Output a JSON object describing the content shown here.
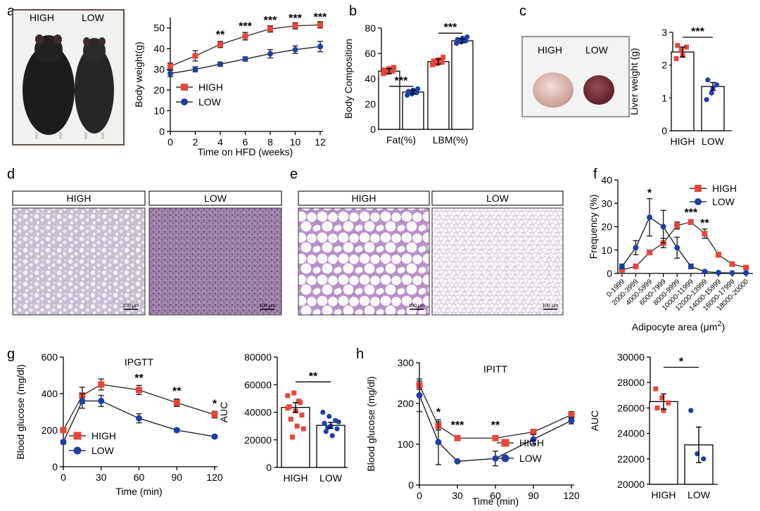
{
  "colors": {
    "high": "#e8463c",
    "low": "#1f3fa8",
    "axis": "#000000"
  },
  "panels": {
    "a": {
      "letter": "a"
    },
    "b": {
      "letter": "b"
    },
    "c": {
      "letter": "c"
    },
    "d": {
      "letter": "d"
    },
    "e": {
      "letter": "e"
    },
    "f": {
      "letter": "f"
    },
    "g": {
      "letter": "g"
    },
    "h": {
      "letter": "h"
    }
  },
  "photos": {
    "mice": {
      "high": "HIGH",
      "low": "LOW"
    },
    "liver": {
      "high": "HIGH",
      "low": "LOW"
    },
    "liver_histo": {
      "high": "HIGH",
      "low": "LOW",
      "scale_high": "100 μm",
      "scale_low": "100 μm"
    },
    "adipose_histo": {
      "high": "HIGH",
      "low": "LOW",
      "scale_high": "100 μm",
      "scale_low": "100 μm"
    }
  },
  "chart_data": [
    {
      "id": "a",
      "type": "line",
      "xlabel": "Time on HFD (weeks)",
      "ylabel": "Body weight(g)",
      "x": [
        0,
        2,
        4,
        6,
        8,
        10,
        12
      ],
      "xticks": [
        0,
        2,
        4,
        6,
        8,
        10,
        12
      ],
      "ylim": [
        0,
        55
      ],
      "yticks": [
        0,
        10,
        20,
        30,
        40,
        50
      ],
      "series": [
        {
          "name": "HIGH",
          "marker": "square",
          "values": [
            31.5,
            36.5,
            42,
            46,
            49.5,
            51,
            51.5
          ],
          "err": [
            1.5,
            2.5,
            1.5,
            1.8,
            1.5,
            1.5,
            1.5
          ]
        },
        {
          "name": "LOW",
          "marker": "circle",
          "values": [
            28,
            30,
            32.5,
            35,
            37.5,
            39.5,
            41
          ],
          "err": [
            1.5,
            1.2,
            1.0,
            1.0,
            2.0,
            1.8,
            2.5
          ]
        }
      ],
      "annotations": [
        {
          "x": 4,
          "y": 45,
          "text": "**"
        },
        {
          "x": 6,
          "y": 49,
          "text": "***"
        },
        {
          "x": 8,
          "y": 52,
          "text": "***"
        },
        {
          "x": 10,
          "y": 53,
          "text": "***"
        },
        {
          "x": 12,
          "y": 53.5,
          "text": "***"
        }
      ],
      "legend": "center-right"
    },
    {
      "id": "b",
      "type": "bar",
      "ylabel": "Body Composition",
      "categories": [
        "Fat(%)",
        "LBM(%)"
      ],
      "ylim": [
        0,
        80
      ],
      "yticks": [
        0,
        20,
        40,
        60,
        80
      ],
      "series": [
        {
          "name": "HIGH",
          "values": [
            46,
            53.5
          ],
          "err": [
            2.0,
            2.0
          ],
          "points": [
            [
              44,
              45,
              46,
              47,
              48,
              49
            ],
            [
              51,
              52,
              53,
              54,
              55,
              57
            ]
          ]
        },
        {
          "name": "LOW",
          "values": [
            29.5,
            70
          ],
          "err": [
            1.5,
            1.5
          ],
          "points": [
            [
              27,
              28,
              29,
              30,
              31,
              32
            ],
            [
              68,
              69,
              70,
              71,
              72,
              73
            ]
          ]
        }
      ],
      "annotations": [
        {
          "group": 0,
          "text": "***",
          "y": 34
        },
        {
          "group": 1,
          "text": "***",
          "y": 76
        }
      ]
    },
    {
      "id": "c",
      "type": "bar",
      "ylabel": "Liver weight (g)",
      "categories": [
        "HIGH",
        "LOW"
      ],
      "ylim": [
        0,
        3
      ],
      "yticks": [
        0,
        1,
        2,
        3
      ],
      "values": [
        2.4,
        1.35
      ],
      "err": [
        0.15,
        0.12
      ],
      "points": [
        [
          2.2,
          2.45,
          2.55,
          2.6,
          2.3
        ],
        [
          0.95,
          1.15,
          1.4,
          1.55,
          1.3
        ]
      ],
      "annotations": [
        {
          "text": "***",
          "y": 2.85
        }
      ]
    },
    {
      "id": "f",
      "type": "line",
      "xlabel": "Adipocyte area (μm",
      "xlabel_sup": "2",
      "xlabel_end": ")",
      "ylabel": "Frequency (%)",
      "categories": [
        "0-1999",
        "2000-3999",
        "4000-5999",
        "6000-7999",
        "8000-9999",
        "10000-11999",
        "12000-13999",
        "14000-15999",
        "16000-17999",
        "18000-20000"
      ],
      "ylim": [
        0,
        40
      ],
      "yticks": [
        0,
        10,
        20,
        30,
        40
      ],
      "series": [
        {
          "name": "HIGH",
          "marker": "square",
          "values": [
            1.5,
            3,
            9,
            13,
            20.5,
            22,
            17,
            8,
            4,
            2.5
          ],
          "err": [
            0.5,
            0.5,
            1.0,
            2.0,
            1.5,
            1.0,
            2.0,
            1.0,
            0.5,
            0.5
          ]
        },
        {
          "name": "LOW",
          "marker": "circle",
          "values": [
            3,
            11,
            24,
            20,
            11,
            3,
            0.8,
            0.3,
            0.2,
            0.2
          ],
          "err": [
            1.0,
            3.0,
            8.0,
            7.0,
            4.5,
            1.0,
            0.5,
            0.2,
            0.1,
            0.1
          ]
        }
      ],
      "annotations": [
        {
          "x": 2,
          "y": 33,
          "text": "*"
        },
        {
          "x": 5,
          "y": 24.5,
          "text": "***"
        },
        {
          "x": 6,
          "y": 20,
          "text": "**"
        }
      ],
      "legend": "top-right"
    },
    {
      "id": "g1",
      "type": "line",
      "title": "IPGTT",
      "xlabel": "Time (min)",
      "ylabel": "Blood glucose (mg/dl)",
      "x": [
        0,
        15,
        30,
        60,
        90,
        120
      ],
      "xticks": [
        0,
        30,
        60,
        90,
        120
      ],
      "ylim": [
        0,
        600
      ],
      "yticks": [
        0,
        200,
        400,
        600
      ],
      "series": [
        {
          "name": "HIGH",
          "marker": "square",
          "values": [
            200,
            390,
            450,
            420,
            350,
            285
          ],
          "err": [
            10,
            45,
            30,
            25,
            20,
            18
          ]
        },
        {
          "name": "LOW",
          "marker": "circle",
          "values": [
            135,
            360,
            360,
            265,
            200,
            165
          ],
          "err": [
            10,
            40,
            30,
            25,
            10,
            8
          ]
        }
      ],
      "annotations": [
        {
          "x": 60,
          "y": 465,
          "text": "**"
        },
        {
          "x": 90,
          "y": 395,
          "text": "**"
        },
        {
          "x": 120,
          "y": 325,
          "text": "*"
        }
      ],
      "legend": "bottom-left"
    },
    {
      "id": "g2",
      "type": "bar",
      "ylabel": "AUC",
      "categories": [
        "HIGH",
        "LOW"
      ],
      "ylim": [
        0,
        80000
      ],
      "yticks": [
        0,
        20000,
        40000,
        60000,
        80000
      ],
      "values": [
        43500,
        30500
      ],
      "err": [
        3500,
        2200
      ],
      "points": [
        [
          52000,
          54000,
          47000,
          44000,
          41000,
          38000,
          35000,
          30000,
          28000,
          22000,
          48000,
          43000
        ],
        [
          40000,
          37000,
          34000,
          32000,
          30000,
          28000,
          26000,
          23000,
          33000,
          29000
        ]
      ],
      "annotations": [
        {
          "text": "**",
          "y": 62000
        }
      ]
    },
    {
      "id": "h1",
      "type": "line",
      "title": "IPITT",
      "xlabel": "Time (min)",
      "ylabel": "Blood glucose (mg/dl)",
      "x": [
        0,
        15,
        30,
        60,
        90,
        120
      ],
      "xticks": [
        0,
        30,
        60,
        90,
        120
      ],
      "ylim": [
        0,
        300
      ],
      "yticks": [
        0,
        100,
        200,
        300
      ],
      "series": [
        {
          "name": "HIGH",
          "marker": "square",
          "values": [
            245,
            145,
            115,
            115,
            130,
            172
          ],
          "err": [
            10,
            10,
            5,
            5,
            5,
            8
          ]
        },
        {
          "name": "LOW",
          "marker": "circle",
          "values": [
            220,
            105,
            58,
            65,
            112,
            158
          ],
          "err": [
            40,
            55,
            3,
            18,
            12,
            8
          ]
        }
      ],
      "annotations": [
        {
          "x": 15,
          "y": 170,
          "text": "*"
        },
        {
          "x": 30,
          "y": 138,
          "text": "***"
        },
        {
          "x": 60,
          "y": 138,
          "text": "**"
        }
      ],
      "legend": "bottom-right"
    },
    {
      "id": "h2",
      "type": "bar",
      "ylabel": "AUC",
      "categories": [
        "HIGH",
        "LOW"
      ],
      "ylim": [
        20000,
        30000
      ],
      "yticks": [
        20000,
        22000,
        24000,
        26000,
        28000,
        30000
      ],
      "values": [
        26500,
        23100
      ],
      "err": [
        600,
        1400
      ],
      "points": [
        [
          27500,
          26800,
          26400,
          26000,
          25800
        ],
        [
          25800,
          22400,
          22000
        ]
      ],
      "annotations": [
        {
          "text": "*",
          "y": 29200
        }
      ]
    }
  ]
}
